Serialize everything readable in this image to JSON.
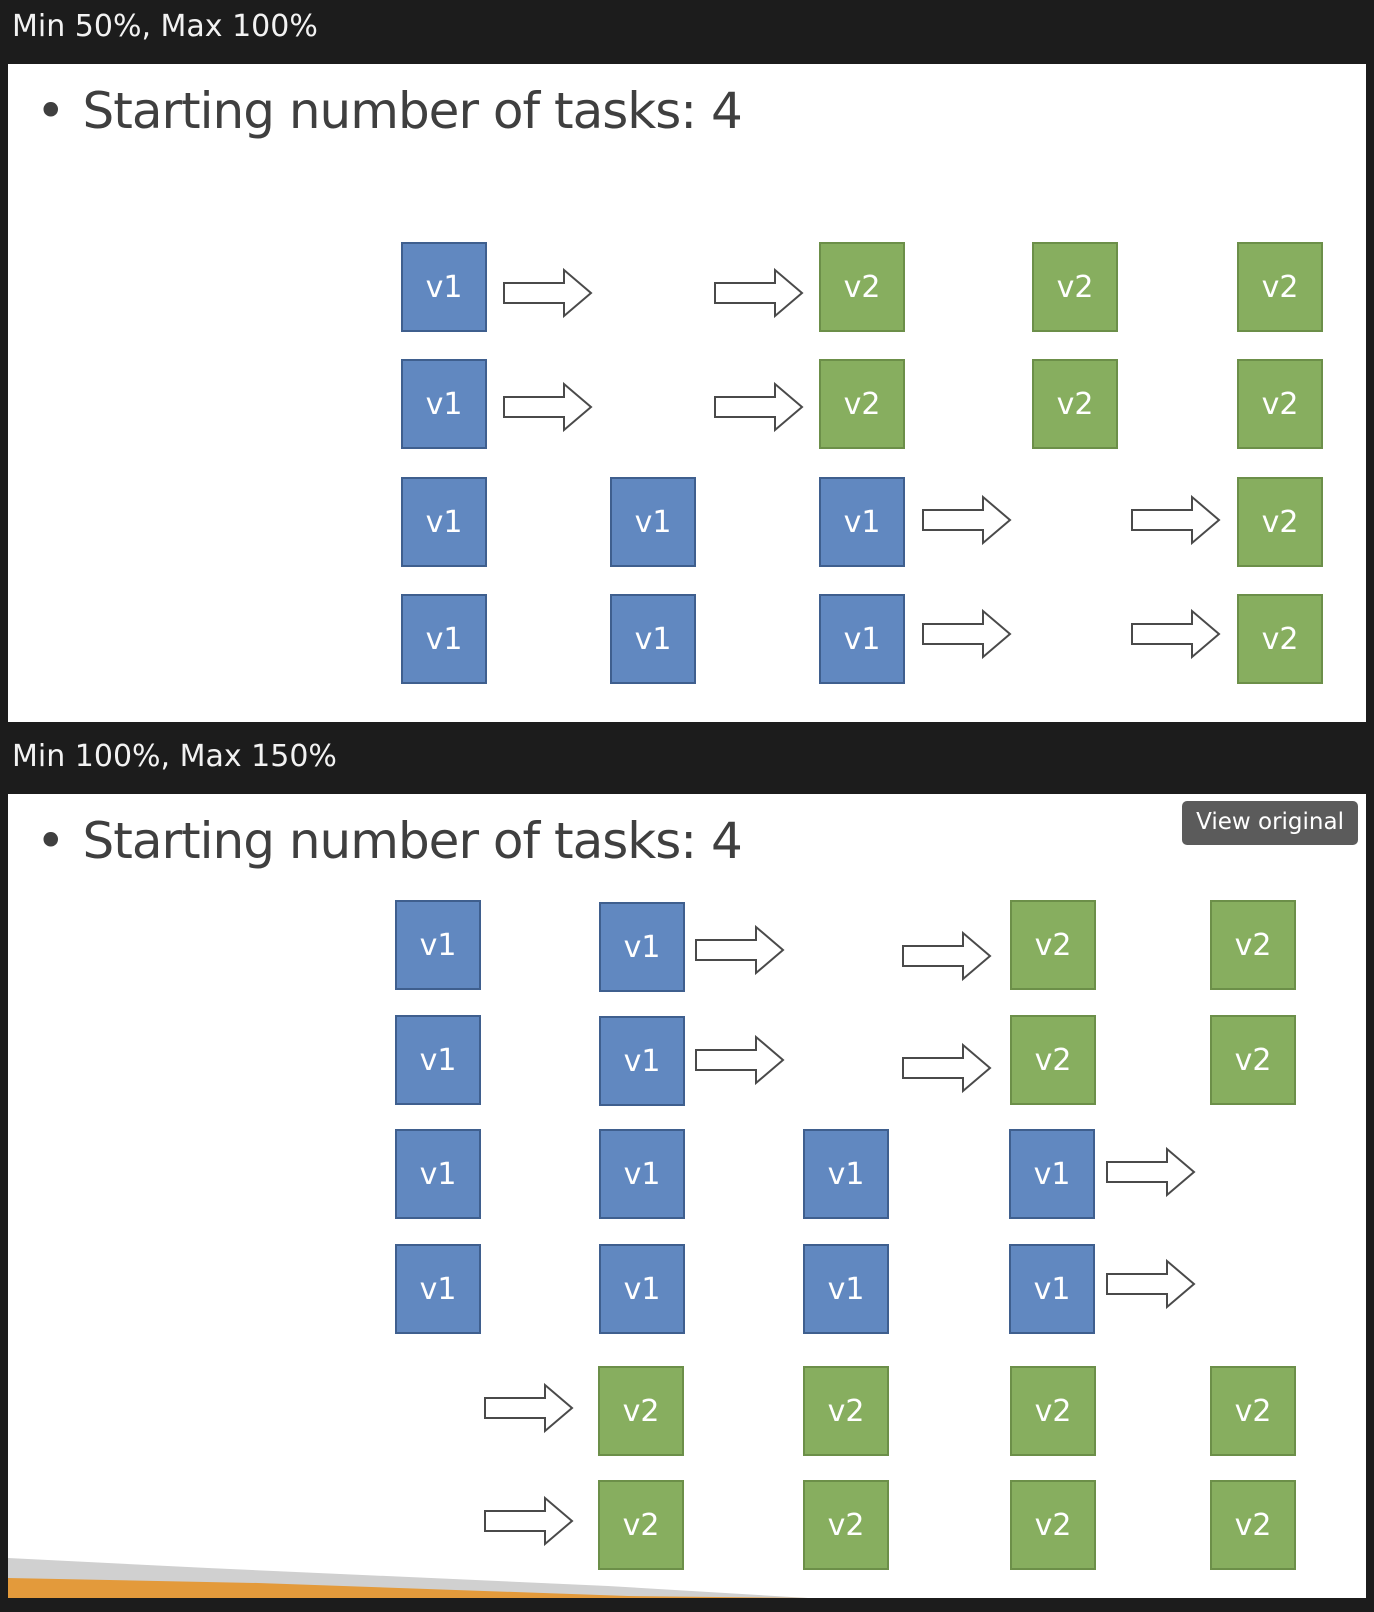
{
  "panels": [
    {
      "label": "Min 50%, Max 100%",
      "title": "Starting number of tasks: 4",
      "bullet": "•"
    },
    {
      "label": "Min 100%, Max 150%",
      "title": "Starting number of tasks: 4",
      "bullet": "•",
      "view_original": "View original"
    }
  ],
  "tasks": {
    "v1": "v1",
    "v2": "v2"
  },
  "colors": {
    "v1_fill": "#6188c0",
    "v2_fill": "#87ae5f",
    "background": "#1c1c1c"
  },
  "icons": {
    "arrow": "right-outline-arrow-icon"
  }
}
